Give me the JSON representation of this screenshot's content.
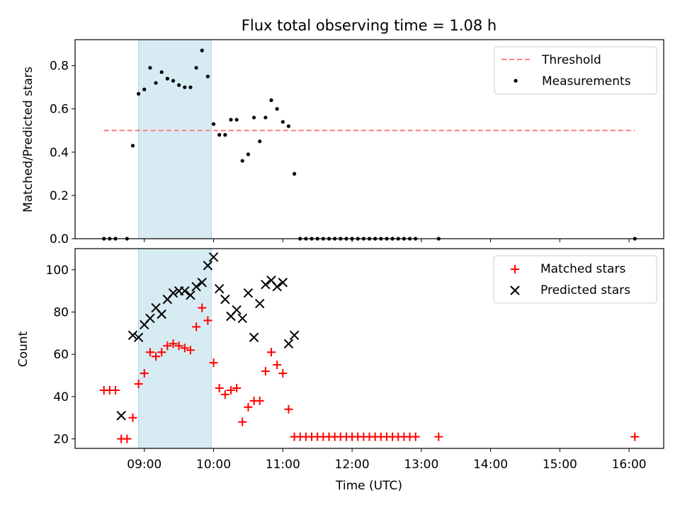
{
  "chart_data": {
    "title": "Flux total observing time = 1.08 h",
    "shaded_interval": [
      "08:55",
      "09:58"
    ],
    "x_axis": {
      "label": "Time (UTC)",
      "range": [
        "08:00",
        "16:30"
      ],
      "ticks": [
        "09:00",
        "10:00",
        "11:00",
        "12:00",
        "13:00",
        "14:00",
        "15:00",
        "16:00"
      ]
    },
    "panels": [
      {
        "type": "scatter",
        "ylabel": "Matched/Predicted stars",
        "ylim": [
          0,
          0.92
        ],
        "yticks": [
          "0.0",
          "0.2",
          "0.4",
          "0.6",
          "0.8"
        ],
        "legend_position": "top-right",
        "threshold": {
          "name": "Threshold",
          "value": 0.5,
          "x_range": [
            "08:25",
            "16:05"
          ],
          "color": "#ff7f7f",
          "style": "dashed"
        },
        "series": [
          {
            "name": "Measurements",
            "color": "#000000",
            "marker": "dot",
            "x": [
              "08:25",
              "08:30",
              "08:35",
              "08:45",
              "08:50",
              "08:55",
              "09:00",
              "09:05",
              "09:10",
              "09:15",
              "09:20",
              "09:25",
              "09:30",
              "09:35",
              "09:40",
              "09:45",
              "09:50",
              "09:55",
              "10:00",
              "10:05",
              "10:10",
              "10:15",
              "10:20",
              "10:25",
              "10:30",
              "10:35",
              "10:40",
              "10:45",
              "10:50",
              "10:55",
              "11:00",
              "11:05",
              "11:10",
              "11:15",
              "11:20",
              "11:25",
              "11:30",
              "11:35",
              "11:40",
              "11:45",
              "11:50",
              "11:55",
              "12:00",
              "12:05",
              "12:10",
              "12:15",
              "12:20",
              "12:25",
              "12:30",
              "12:35",
              "12:40",
              "12:45",
              "12:50",
              "12:55",
              "13:15",
              "16:05"
            ],
            "y": [
              0.0,
              0.0,
              0.0,
              0.0,
              0.43,
              0.67,
              0.69,
              0.79,
              0.72,
              0.77,
              0.74,
              0.73,
              0.71,
              0.7,
              0.7,
              0.79,
              0.87,
              0.75,
              0.53,
              0.48,
              0.48,
              0.55,
              0.55,
              0.36,
              0.39,
              0.56,
              0.45,
              0.56,
              0.64,
              0.6,
              0.54,
              0.52,
              0.3,
              0.0,
              0.0,
              0.0,
              0.0,
              0.0,
              0.0,
              0.0,
              0.0,
              0.0,
              0.0,
              0.0,
              0.0,
              0.0,
              0.0,
              0.0,
              0.0,
              0.0,
              0.0,
              0.0,
              0.0,
              0.0,
              0.0,
              0.0
            ]
          }
        ]
      },
      {
        "type": "scatter",
        "ylabel": "Count",
        "ylim": [
          15.5,
          110
        ],
        "yticks": [
          "20",
          "40",
          "60",
          "80",
          "100"
        ],
        "legend_position": "top-right",
        "series": [
          {
            "name": "Matched stars",
            "color": "#ff0000",
            "marker": "plus",
            "x": [
              "08:25",
              "08:30",
              "08:35",
              "08:40",
              "08:45",
              "08:50",
              "08:55",
              "09:00",
              "09:05",
              "09:10",
              "09:15",
              "09:20",
              "09:25",
              "09:30",
              "09:35",
              "09:40",
              "09:45",
              "09:50",
              "09:55",
              "10:00",
              "10:05",
              "10:10",
              "10:15",
              "10:20",
              "10:25",
              "10:30",
              "10:35",
              "10:40",
              "10:45",
              "10:50",
              "10:55",
              "11:00",
              "11:05",
              "11:10",
              "11:15",
              "11:20",
              "11:25",
              "11:30",
              "11:35",
              "11:40",
              "11:45",
              "11:50",
              "11:55",
              "12:00",
              "12:05",
              "12:10",
              "12:15",
              "12:20",
              "12:25",
              "12:30",
              "12:35",
              "12:40",
              "12:45",
              "12:50",
              "12:55",
              "13:15",
              "16:05"
            ],
            "y": [
              43,
              43,
              43,
              20,
              20,
              30,
              46,
              51,
              61,
              59,
              61,
              64,
              65,
              64,
              63,
              62,
              73,
              82,
              76,
              56,
              44,
              41,
              43,
              44,
              28,
              35,
              38,
              38,
              52,
              61,
              55,
              51,
              34,
              21,
              21,
              21,
              21,
              21,
              21,
              21,
              21,
              21,
              21,
              21,
              21,
              21,
              21,
              21,
              21,
              21,
              21,
              21,
              21,
              21,
              21,
              21,
              21
            ]
          },
          {
            "name": "Predicted stars",
            "color": "#000000",
            "marker": "x",
            "x": [
              "08:40",
              "08:50",
              "08:55",
              "09:00",
              "09:05",
              "09:10",
              "09:15",
              "09:20",
              "09:25",
              "09:30",
              "09:35",
              "09:40",
              "09:45",
              "09:50",
              "09:55",
              "10:00",
              "10:05",
              "10:10",
              "10:15",
              "10:20",
              "10:25",
              "10:30",
              "10:35",
              "10:40",
              "10:45",
              "10:50",
              "10:55",
              "11:00",
              "11:05",
              "11:10"
            ],
            "y": [
              31,
              69,
              68,
              74,
              77,
              82,
              79,
              86,
              89,
              90,
              90,
              88,
              92,
              94,
              102,
              106,
              91,
              86,
              78,
              81,
              77,
              89,
              68,
              84,
              93,
              95,
              92,
              94,
              65,
              69
            ]
          }
        ]
      }
    ]
  }
}
